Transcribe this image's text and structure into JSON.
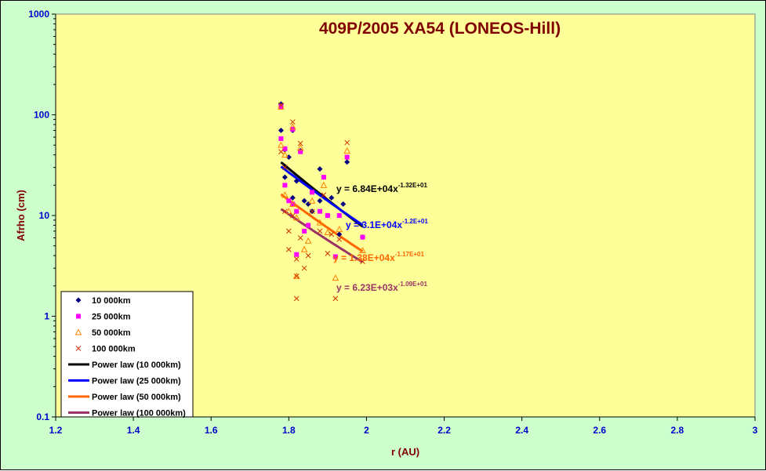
{
  "colors": {
    "outer_bg": "#ccffcc",
    "plot_bg": "#ffff99",
    "title": "#800000",
    "tick_labels": "#0000cc"
  },
  "chart_data": {
    "type": "scatter",
    "title": "409P/2005 XA54 (LONEOS-Hill)",
    "xlabel": "r (AU)",
    "ylabel": "Afrho (cm)",
    "xlim": [
      1.2,
      3.0
    ],
    "ylim": [
      0.1,
      1000
    ],
    "yscale": "log",
    "grid": false,
    "legend_position": "bottom-left",
    "x_ticks": [
      "1.2",
      "1.4",
      "1.6",
      "1.8",
      "2",
      "2.2",
      "2.4",
      "2.6",
      "2.8",
      "3"
    ],
    "y_ticks": [
      "0.1",
      "1",
      "10",
      "100",
      "1000"
    ],
    "series": [
      {
        "name": "10 000km",
        "marker": "diamond",
        "color": "#000080",
        "x": [
          1.78,
          1.78,
          1.79,
          1.79,
          1.8,
          1.81,
          1.81,
          1.82,
          1.83,
          1.84,
          1.85,
          1.86,
          1.88,
          1.88,
          1.9,
          1.91,
          1.93,
          1.94,
          1.95,
          1.99
        ],
        "y": [
          128,
          70,
          45,
          24,
          38,
          70,
          15,
          22,
          44,
          14,
          13,
          11,
          14,
          29,
          10,
          15,
          6.5,
          13,
          34,
          6.1
        ]
      },
      {
        "name": "25 000km",
        "marker": "square",
        "color": "#ff00ff",
        "x": [
          1.78,
          1.78,
          1.79,
          1.79,
          1.8,
          1.81,
          1.81,
          1.82,
          1.82,
          1.83,
          1.84,
          1.85,
          1.86,
          1.88,
          1.89,
          1.9,
          1.92,
          1.93,
          1.95,
          1.99
        ],
        "y": [
          120,
          58,
          46,
          20,
          14,
          72,
          13,
          11,
          4.1,
          43,
          7,
          8,
          17,
          11,
          24,
          10,
          3.9,
          10,
          38,
          6.1
        ]
      },
      {
        "name": "50 000km",
        "marker": "triangle",
        "color": "#ff8000",
        "x": [
          1.78,
          1.78,
          1.79,
          1.79,
          1.8,
          1.81,
          1.81,
          1.82,
          1.82,
          1.83,
          1.84,
          1.85,
          1.86,
          1.88,
          1.89,
          1.9,
          1.92,
          1.93,
          1.95,
          1.99
        ],
        "y": [
          120,
          50,
          40,
          16,
          11,
          76,
          13,
          9.5,
          2.5,
          47,
          4.6,
          5.6,
          14,
          8.5,
          20,
          6.8,
          2.4,
          7.3,
          44,
          4.5
        ]
      },
      {
        "name": "100 000km",
        "marker": "x",
        "color": "#cc3300",
        "x": [
          1.78,
          1.78,
          1.79,
          1.79,
          1.8,
          1.8,
          1.81,
          1.81,
          1.82,
          1.82,
          1.82,
          1.83,
          1.83,
          1.84,
          1.85,
          1.86,
          1.88,
          1.89,
          1.9,
          1.91,
          1.92,
          1.93,
          1.95,
          1.99
        ],
        "y": [
          125,
          43,
          30,
          11,
          7,
          4.6,
          85,
          10,
          3.7,
          1.5,
          2.5,
          52,
          6,
          3,
          4,
          11,
          7,
          16,
          4.2,
          6.5,
          1.5,
          5.8,
          53,
          3.5
        ]
      }
    ],
    "fits": [
      {
        "name": "Power law (10 000km)",
        "color": "#000000",
        "a": 68400,
        "b": -13.2,
        "x_range": [
          1.78,
          1.99
        ],
        "equation": "y = 6.84E+04x",
        "exponent": "-1.32E+01"
      },
      {
        "name": "Power law (25 000km)",
        "color": "#0000ff",
        "a": 31000,
        "b": -12.0,
        "x_range": [
          1.78,
          1.99
        ],
        "equation": "y = 3.1E+04x",
        "exponent": "-1.2E+01"
      },
      {
        "name": "Power law (50 000km)",
        "color": "#ff6600",
        "a": 13800,
        "b": -11.7,
        "x_range": [
          1.78,
          1.99
        ],
        "equation": "y = 1.38E+04x",
        "exponent": "-1.17E+01"
      },
      {
        "name": "Power law (100 000km)",
        "color": "#993366",
        "a": 6230,
        "b": -10.9,
        "x_range": [
          1.78,
          1.99
        ],
        "equation": "y = 6.23E+03x",
        "exponent": "-1.09E+01"
      }
    ]
  }
}
